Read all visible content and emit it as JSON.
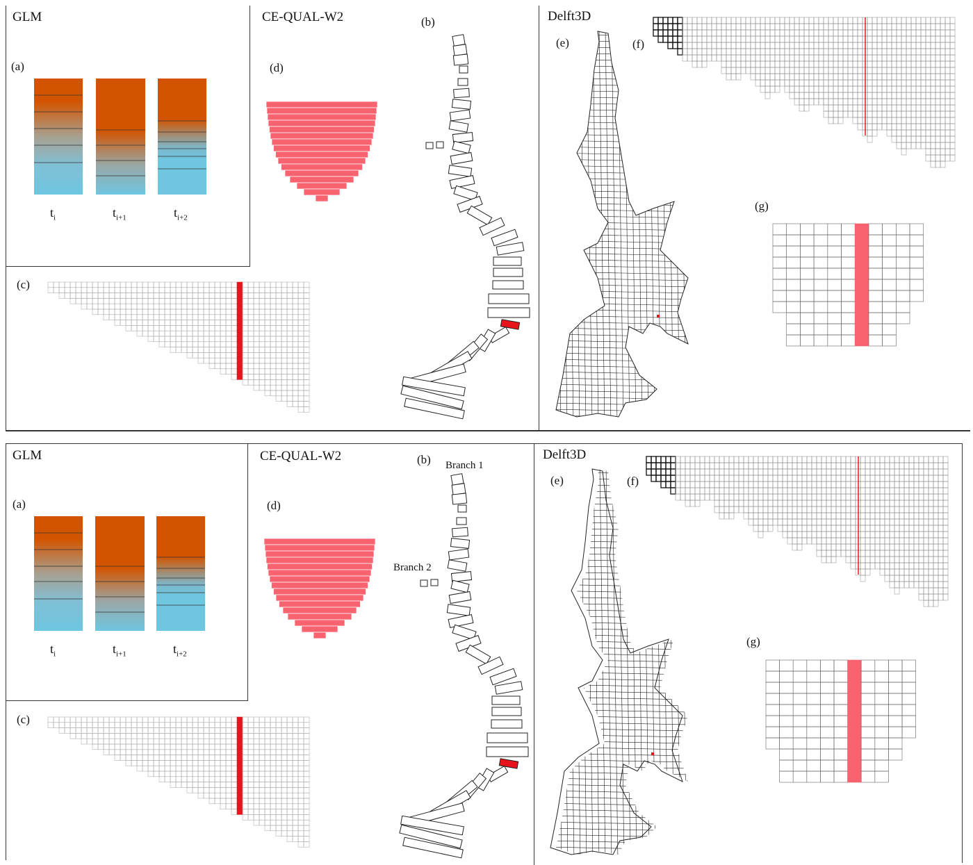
{
  "colors": {
    "glm_top": "#d35400",
    "glm_bottom": "#6ec6e0",
    "highlight_red": "#e8141b",
    "highlight_pink": "#f8636f",
    "grid_line": "#555555"
  },
  "figures": [
    {
      "glm_title": "GLM",
      "w2_title": "CE-QUAL-W2",
      "delft_title": "Delft3D",
      "labels": {
        "a": "(a)",
        "b": "(b)",
        "c": "(c)",
        "d": "(d)",
        "e": "(e)",
        "f": "(f)",
        "g": "(g)"
      },
      "time_labels": [
        {
          "base": "t",
          "sub": "i"
        },
        {
          "base": "t",
          "sub": "i+1"
        },
        {
          "base": "t",
          "sub": "i+2"
        }
      ],
      "branch1": "",
      "branch2": ""
    },
    {
      "glm_title": "GLM",
      "w2_title": "CE-QUAL-W2",
      "delft_title": "Delft3D",
      "labels": {
        "a": "(a)",
        "b": "(b)",
        "c": "(c)",
        "d": "(d)",
        "e": "(e)",
        "f": "(f)",
        "g": "(g)"
      },
      "time_labels": [
        {
          "base": "t",
          "sub": "i"
        },
        {
          "base": "t",
          "sub": "i+1"
        },
        {
          "base": "t",
          "sub": "i+2"
        }
      ],
      "branch1": "Branch 1",
      "branch2": "Branch 2"
    }
  ]
}
